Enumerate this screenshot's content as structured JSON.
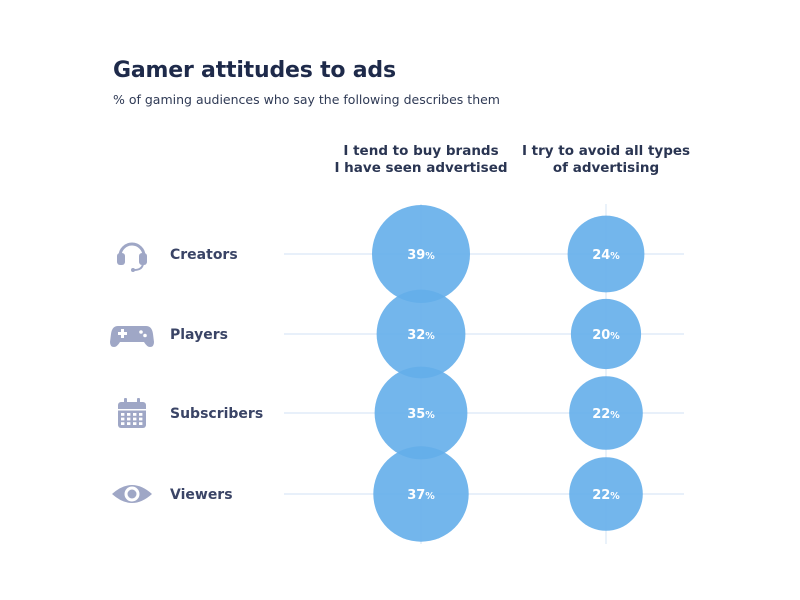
{
  "chart_data": {
    "type": "bubble",
    "title": "Gamer attitudes to ads",
    "subtitle": "% of gaming audiences who say the following describes them",
    "columns": [
      {
        "name": "I tend to buy brands I have seen advertised",
        "lines": [
          "I tend to buy brands",
          "I have seen advertised"
        ]
      },
      {
        "name": "I try to avoid all types of advertising",
        "lines": [
          "I try to avoid all types",
          "of advertising"
        ]
      }
    ],
    "rows": [
      {
        "label": "Creators",
        "icon": "headset-icon",
        "values": [
          39,
          24
        ]
      },
      {
        "label": "Players",
        "icon": "gamepad-icon",
        "values": [
          32,
          20
        ]
      },
      {
        "label": "Subscribers",
        "icon": "calendar-icon",
        "values": [
          35,
          22
        ]
      },
      {
        "label": "Viewers",
        "icon": "eye-icon",
        "values": [
          37,
          22
        ]
      }
    ],
    "value_suffix": "%",
    "colors": {
      "bubble": "#64aeea",
      "gridline": "#dbe8f6",
      "icon": "#9fa7c6"
    }
  }
}
